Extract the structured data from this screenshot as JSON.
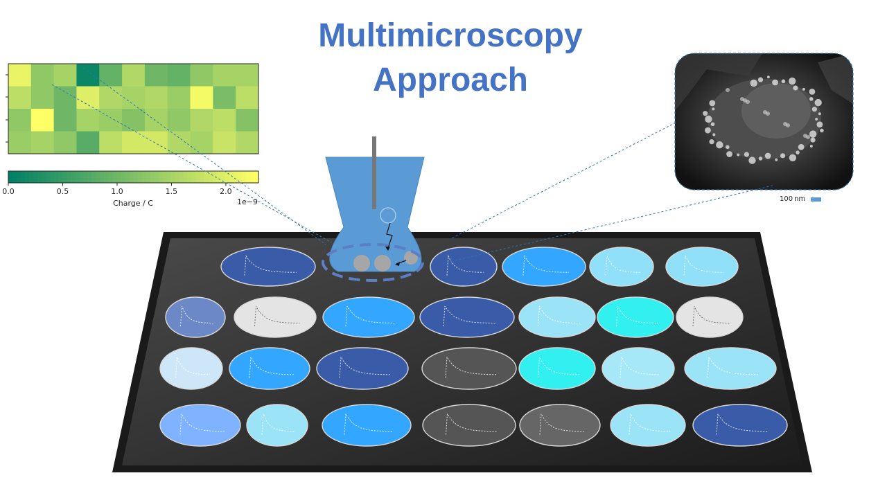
{
  "title": {
    "line1": "Multimicroscopy",
    "line2": "Approach"
  },
  "colorbar": {
    "label": "Charge / C",
    "exponent": "1e−9",
    "ticks": [
      "0.0",
      "0.5",
      "1.0",
      "1.5",
      "2.0"
    ],
    "min": 0.0,
    "max": 2.3
  },
  "heatmap": {
    "rows": 4,
    "cols": 11,
    "values": [
      [
        2.1,
        1.3,
        1.5,
        0.1,
        0.9,
        1.6,
        1.0,
        0.9,
        1.3,
        1.5,
        1.5
      ],
      [
        1.7,
        1.3,
        1.0,
        2.0,
        1.6,
        1.5,
        1.6,
        1.4,
        2.2,
        1.1,
        1.7
      ],
      [
        1.3,
        2.3,
        1.0,
        1.5,
        1.4,
        1.2,
        1.5,
        1.3,
        1.6,
        1.7,
        1.2
      ],
      [
        1.4,
        1.5,
        1.3,
        0.8,
        1.7,
        1.9,
        1.9,
        1.6,
        1.5,
        1.8,
        1.6
      ]
    ]
  },
  "sem": {
    "scale_label": "100 nm",
    "accent": "#5b9bd5"
  },
  "tip": {
    "solution_color": "#5b9bd5",
    "electrode_color": "#777777"
  },
  "platform": {
    "frame_color": "#1a1a1a",
    "surface_color": "#3c3c3c"
  },
  "spots": {
    "rows": [
      [
        "#3a5ba8",
        "#3a5ba8",
        "#33a6ff",
        "#8fe0f8",
        "#8fe0f8"
      ],
      [
        "#6d88c6",
        "#e4e4e4",
        "#33a6ff",
        "#3a5ba8",
        "#9be4f8",
        "#33f0f0",
        "#e4e4e4"
      ],
      [
        "#cde6f8",
        "#33a6ff",
        "#3a5ba8",
        "#555555",
        "#33f0f0",
        "#a6e8f8",
        "#9be4f8"
      ],
      [
        "#7fb2ff",
        "#9be4f8",
        "#33a6ff",
        "#555555",
        "#666666",
        "#9be4f8",
        "#3a5ba8"
      ]
    ]
  }
}
